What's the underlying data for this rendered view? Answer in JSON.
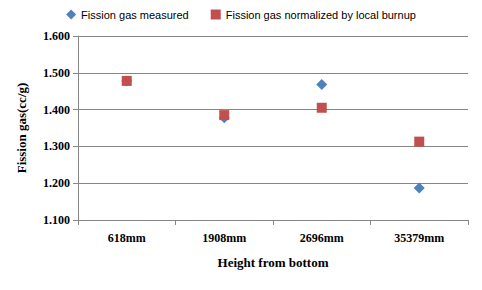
{
  "chart_data": {
    "type": "scatter",
    "x_label": "Height from bottom",
    "y_label": "Fission gas(cc/g)",
    "categories": [
      "618mm",
      "1908mm",
      "2696mm",
      "35379mm"
    ],
    "series": [
      {
        "name": "Fission gas measured",
        "color": "#4f81bd",
        "marker": "diamond",
        "values": [
          1.478,
          1.378,
          1.468,
          1.187
        ]
      },
      {
        "name": "Fission gas normalized by local burnup",
        "color": "#c0504d",
        "marker": "square",
        "values": [
          1.478,
          1.385,
          1.405,
          1.313
        ]
      }
    ],
    "ylim": [
      1.1,
      1.6
    ],
    "yticks": [
      {
        "value": 1.1,
        "label": "1.100"
      },
      {
        "value": 1.2,
        "label": "1.200"
      },
      {
        "value": 1.3,
        "label": "1.300"
      },
      {
        "value": 1.4,
        "label": "1.400"
      },
      {
        "value": 1.5,
        "label": "1.500"
      },
      {
        "value": 1.6,
        "label": "1.600"
      }
    ],
    "grid": true,
    "legend": "top"
  }
}
